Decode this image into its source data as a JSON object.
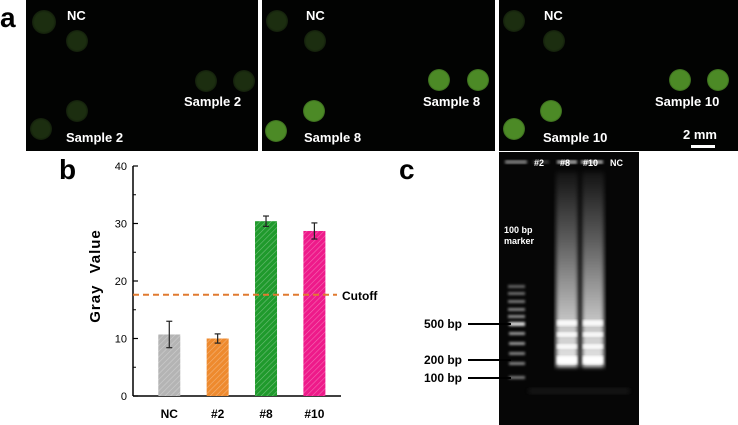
{
  "panel_a": {
    "letter": "a",
    "images": [
      {
        "nc_label": "NC",
        "sample_label_1": "Sample 2",
        "sample_label_2": "Sample 2",
        "signal": "weak"
      },
      {
        "nc_label": "NC",
        "sample_label_1": "Sample 8",
        "sample_label_2": "Sample 8",
        "signal": "strong"
      },
      {
        "nc_label": "NC",
        "sample_label_1": "Sample 10",
        "sample_label_2": "Sample 10",
        "signal": "strong"
      }
    ],
    "scale_bar": "2 mm",
    "colors": {
      "background": "#020302",
      "weak_spot": "#1c2e10",
      "strong_spot": "#4c8a26"
    }
  },
  "panel_b": {
    "letter": "b"
  },
  "panel_c": {
    "letter": "c",
    "lanes": [
      "#2",
      "#8",
      "#10",
      "NC"
    ],
    "marker_label_line1": "100 bp",
    "marker_label_line2": "marker",
    "size_labels": [
      "500 bp",
      "200 bp",
      "100 bp"
    ]
  },
  "chart_data": {
    "type": "bar",
    "categories": [
      "NC",
      "#2",
      "#8",
      "#10"
    ],
    "values": [
      10.7,
      10.0,
      30.4,
      28.7
    ],
    "errors": [
      2.3,
      0.8,
      0.9,
      1.4
    ],
    "bar_colors": [
      "#b4b4b4",
      "#ee8a2e",
      "#1f9a2c",
      "#ee1a8a"
    ],
    "xlabel": "",
    "ylabel": "Gray Value",
    "ylim": [
      0,
      40
    ],
    "yticks": [
      0,
      10,
      20,
      30,
      40
    ],
    "cutoff": {
      "value": 17.6,
      "label": "Cutoff",
      "color": "#e07a30"
    },
    "grid": false,
    "bar_pattern": "diagonal hatch"
  }
}
